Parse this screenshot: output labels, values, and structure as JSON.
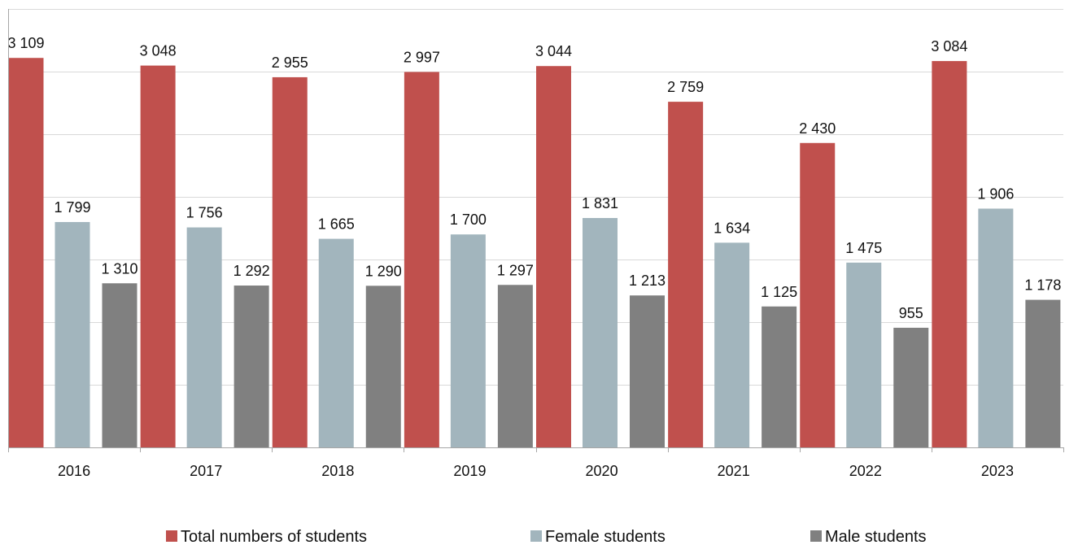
{
  "chart_data": {
    "type": "bar",
    "categories": [
      "2016",
      "2017",
      "2018",
      "2019",
      "2020",
      "2021",
      "2022",
      "2023"
    ],
    "series": [
      {
        "name": "Total numbers of students",
        "color": "#c0504d",
        "values": [
          3109,
          3048,
          2955,
          2997,
          3044,
          2759,
          2430,
          3084
        ],
        "labels": [
          "3 109",
          "3 048",
          "2 955",
          "2 997",
          "3 044",
          "2 759",
          "2 430",
          "3 084"
        ]
      },
      {
        "name": "Female students",
        "color": "#a2b5bd",
        "values": [
          1799,
          1756,
          1665,
          1700,
          1831,
          1634,
          1475,
          1906
        ],
        "labels": [
          "1 799",
          "1 756",
          "1 665",
          "1 700",
          "1 831",
          "1 634",
          "1 475",
          "1 906"
        ]
      },
      {
        "name": "Male students",
        "color": "#808080",
        "values": [
          1310,
          1292,
          1290,
          1297,
          1213,
          1125,
          955,
          1178
        ],
        "labels": [
          "1 310",
          "1 292",
          "1 290",
          "1 297",
          "1 213",
          "1 125",
          "955",
          "1 178"
        ]
      }
    ],
    "ylim": [
      0,
      3500
    ],
    "grid": true,
    "legend_position": "bottom"
  }
}
